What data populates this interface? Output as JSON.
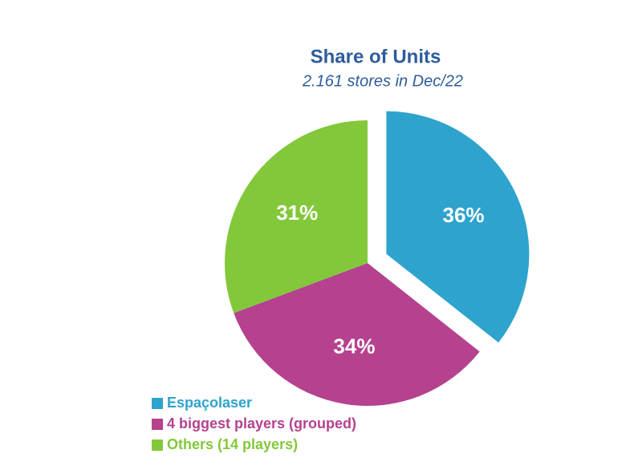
{
  "chart_data": {
    "type": "pie",
    "title": "Share of Units",
    "subtitle": "2.161 stores in Dec/22",
    "categories": [
      "Espaçolaser",
      "4 biggest players (grouped)",
      "Others (14 players)"
    ],
    "values": [
      36,
      34,
      31
    ],
    "value_labels": [
      "36%",
      "34%",
      "31%"
    ],
    "colors": [
      "#2ea3cd",
      "#b5418f",
      "#82c83a"
    ],
    "exploded": [
      0
    ],
    "legend": "bottom-left"
  }
}
